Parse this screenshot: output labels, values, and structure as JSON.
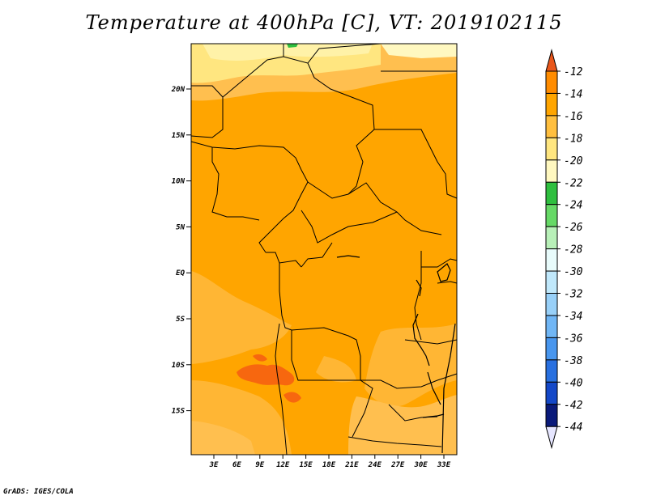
{
  "title": "Temperature at 400hPa [C], VT: 2019102115",
  "credit": "GrADS: IGES/COLA",
  "lat_ticks": [
    "20N",
    "15N",
    "10N",
    "5N",
    "EQ",
    "5S",
    "10S",
    "15S"
  ],
  "lon_ticks": [
    "3E",
    "6E",
    "9E",
    "12E",
    "15E",
    "18E",
    "21E",
    "24E",
    "27E",
    "30E",
    "33E"
  ],
  "colorbar": {
    "labels": [
      "-12",
      "-14",
      "-16",
      "-18",
      "-20",
      "-22",
      "-24",
      "-26",
      "-28",
      "-30",
      "-32",
      "-34",
      "-36",
      "-38",
      "-40",
      "-42",
      "-44"
    ],
    "colors": [
      "#e8561b",
      "#ff8c00",
      "#ffa500",
      "#ffbf3f",
      "#ffe680",
      "#fff8c0",
      "#2fbf3f",
      "#66d966",
      "#b8f0b8",
      "#e8fbfb",
      "#c0e8fb",
      "#98d0f8",
      "#70b6f5",
      "#4896ee",
      "#2870e0",
      "#1448c8",
      "#0a1a7a",
      "#e6e6ff"
    ]
  },
  "map_colors": {
    "t_minus_14": "#ffa500",
    "t_minus_13": "#ffb634",
    "t_minus_12": "#ffbf4f",
    "t_minus_11": "#ffe680",
    "t_minus_10": "#fff2a8",
    "t_minus_15": "#f7670f",
    "t_minus_22": "#2fbf3f"
  }
}
